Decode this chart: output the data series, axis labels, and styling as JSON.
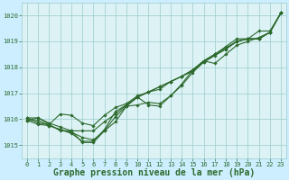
{
  "title": "Graphe pression niveau de la mer (hPa)",
  "hours": [
    0,
    1,
    2,
    3,
    4,
    5,
    6,
    7,
    8,
    9,
    10,
    11,
    12,
    13,
    14,
    15,
    16,
    17,
    18,
    19,
    20,
    21,
    22,
    23
  ],
  "series": [
    [
      1015.95,
      1016.05,
      1015.8,
      1015.55,
      1015.55,
      1015.1,
      1015.1,
      1015.55,
      1016.1,
      1016.5,
      1016.85,
      1017.05,
      1017.25,
      1017.45,
      1017.65,
      1017.85,
      1018.25,
      1018.5,
      1018.75,
      1019.0,
      1019.1,
      1019.1,
      1019.35,
      1020.1
    ],
    [
      1016.05,
      1016.05,
      1015.85,
      1015.7,
      1015.55,
      1015.55,
      1015.55,
      1015.9,
      1016.2,
      1016.55,
      1016.85,
      1017.05,
      1017.25,
      1017.45,
      1017.65,
      1017.9,
      1018.2,
      1018.45,
      1018.7,
      1019.0,
      1019.1,
      1019.1,
      1019.35,
      1020.1
    ],
    [
      1016.05,
      1015.85,
      1015.8,
      1016.2,
      1016.15,
      1015.85,
      1015.75,
      1016.15,
      1016.45,
      1016.6,
      1016.9,
      1017.05,
      1017.15,
      1017.45,
      1017.65,
      1017.9,
      1018.25,
      1018.5,
      1018.7,
      1019.0,
      1019.1,
      1019.1,
      1019.35,
      1020.1
    ],
    [
      1015.95,
      1015.8,
      1015.75,
      1015.6,
      1015.45,
      1015.15,
      1015.15,
      1015.6,
      1016.3,
      1016.55,
      1016.85,
      1016.55,
      1016.5,
      1016.9,
      1017.35,
      1017.9,
      1018.25,
      1018.15,
      1018.5,
      1018.85,
      1019.0,
      1019.15,
      1019.35,
      1020.1
    ],
    [
      1015.95,
      1015.95,
      1015.75,
      1015.6,
      1015.5,
      1015.3,
      1015.2,
      1015.55,
      1015.9,
      1016.5,
      1016.55,
      1016.65,
      1016.6,
      1016.9,
      1017.3,
      1017.8,
      1018.2,
      1018.5,
      1018.8,
      1019.1,
      1019.1,
      1019.4,
      1019.4,
      1020.1
    ]
  ],
  "line_color": "#2d6a2d",
  "marker": "D",
  "marker_size": 1.8,
  "bg_color": "#cceeff",
  "grid_color": "#99cccc",
  "plot_bg_color": "#ddf2f5",
  "ylim": [
    1014.5,
    1020.5
  ],
  "xlim": [
    -0.5,
    23.5
  ],
  "yticks": [
    1015,
    1016,
    1017,
    1018,
    1019,
    1020
  ],
  "xticks": [
    0,
    1,
    2,
    3,
    4,
    5,
    6,
    7,
    8,
    9,
    10,
    11,
    12,
    13,
    14,
    15,
    16,
    17,
    18,
    19,
    20,
    21,
    22,
    23
  ],
  "tick_color": "#2d6a2d",
  "label_color": "#2d6a2d",
  "title_fontsize": 7.0,
  "tick_fontsize": 5.0,
  "lw": 0.8
}
